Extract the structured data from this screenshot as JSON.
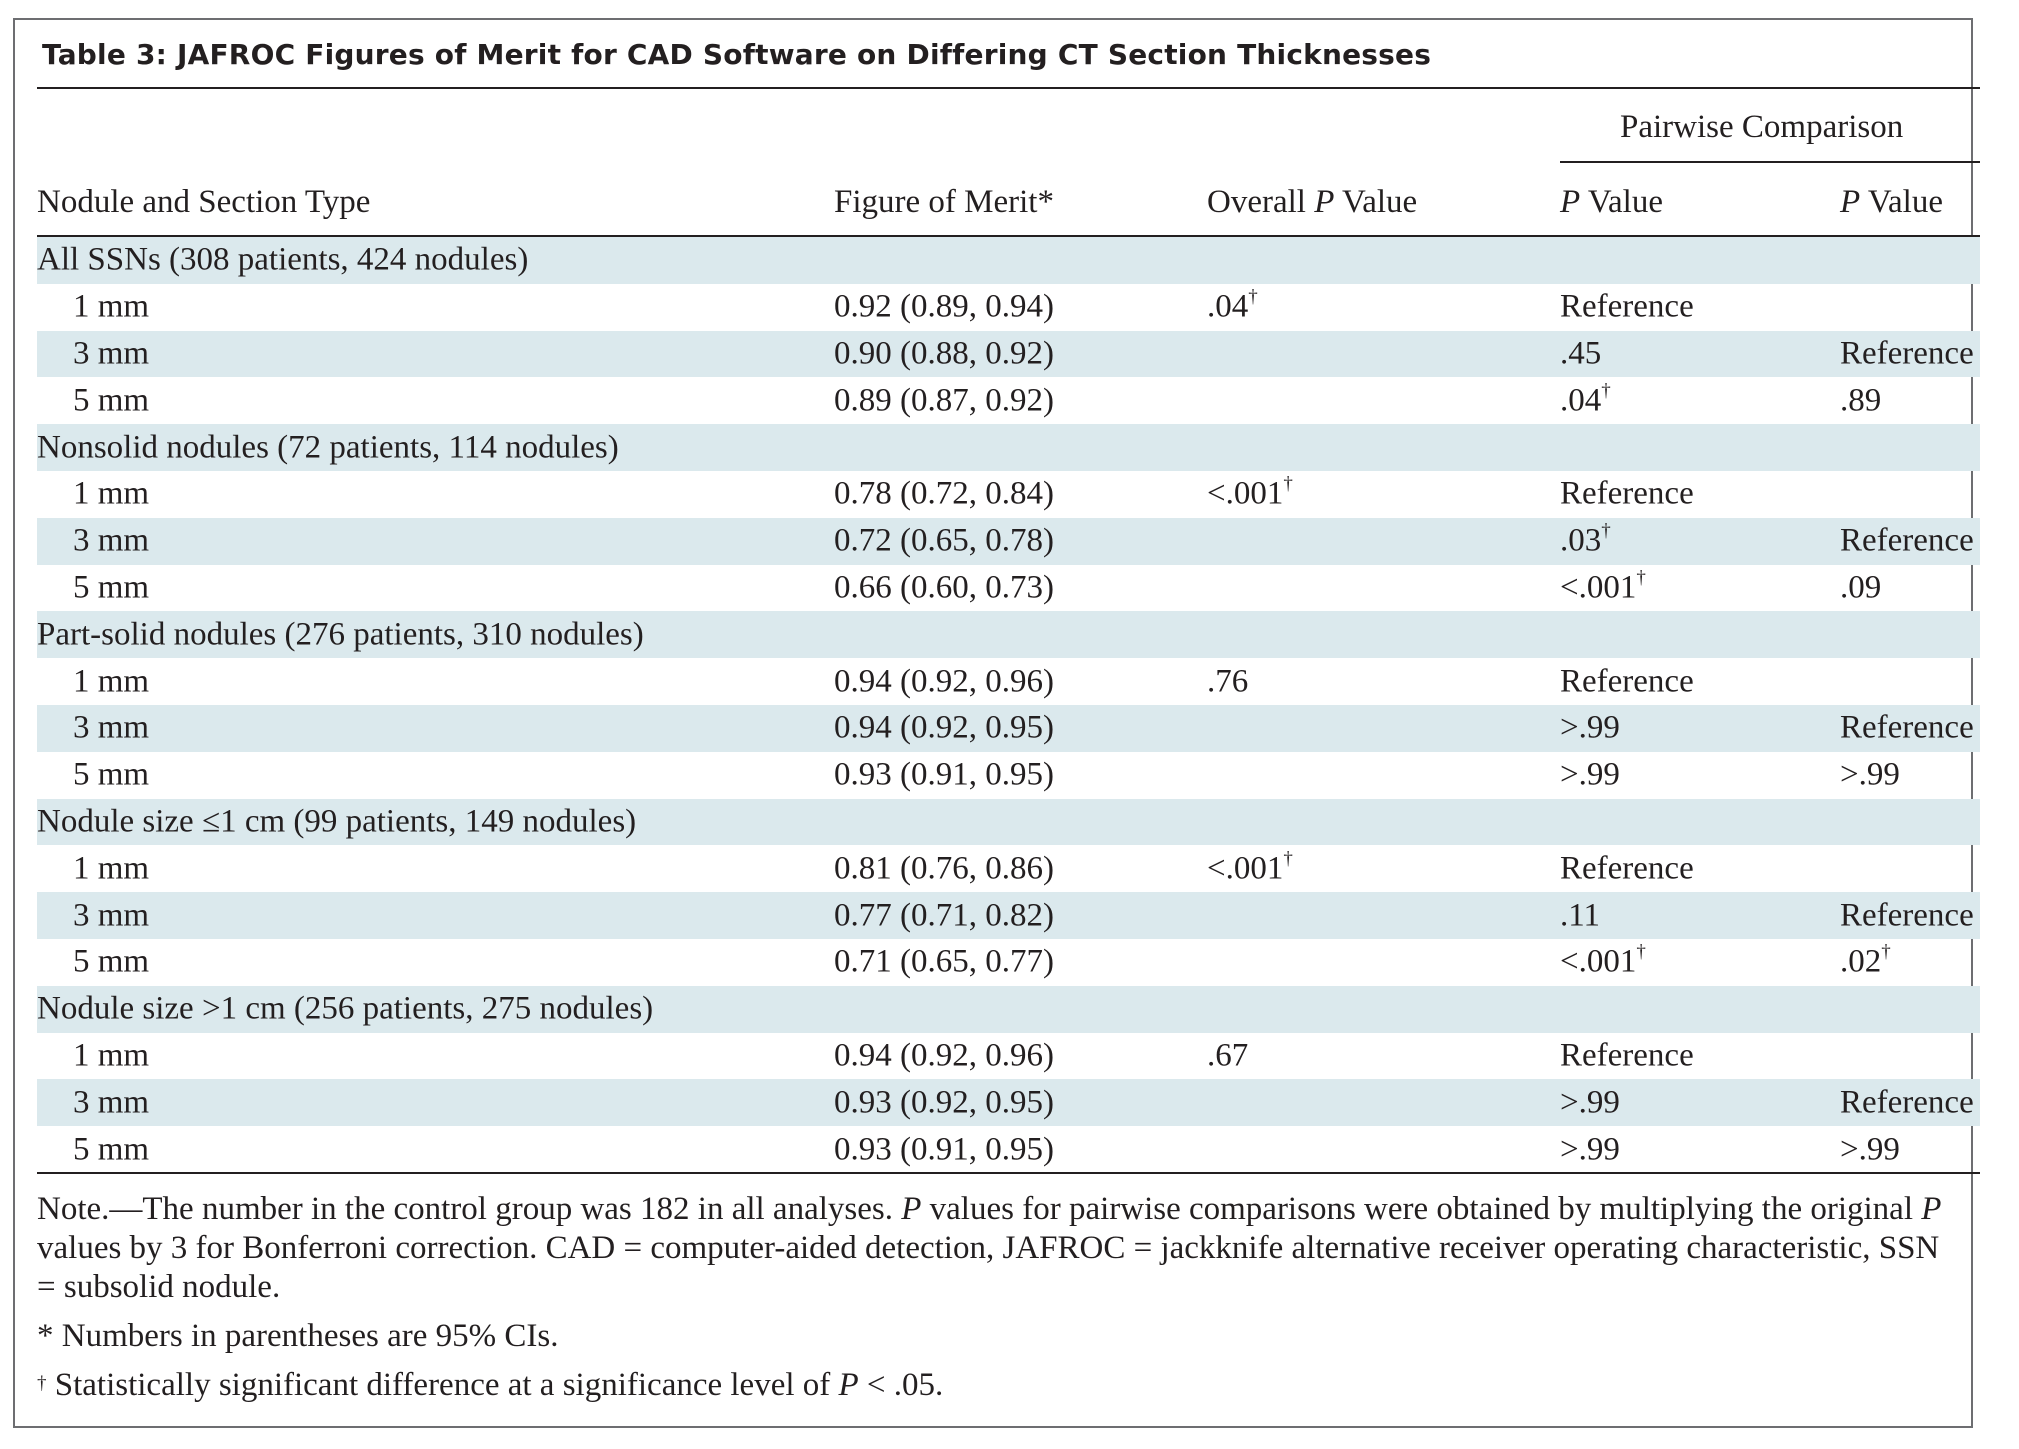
{
  "table": {
    "title": "Table 3: JAFROC Figures of Merit for CAD Software on Differing CT Section Thicknesses",
    "pairwise_header": "Pairwise Comparison",
    "columns": {
      "label": "Nodule and Section Type",
      "fom": "Figure of Merit",
      "fom_mark": "*",
      "overall_prefix": "Overall ",
      "p_italic": "P",
      "value_word": " Value"
    },
    "rows": [
      {
        "type": "group",
        "label": "All SSNs (308 patients, 424 nodules)"
      },
      {
        "type": "data",
        "label": "1 mm",
        "fom": "0.92 (0.89, 0.94)",
        "overall": ".04",
        "overall_mark": "†",
        "p1": "Reference",
        "p1_mark": "",
        "p2": "",
        "p2_mark": ""
      },
      {
        "type": "data",
        "label": "3 mm",
        "fom": "0.90 (0.88, 0.92)",
        "overall": "",
        "overall_mark": "",
        "p1": ".45",
        "p1_mark": "",
        "p2": "Reference",
        "p2_mark": ""
      },
      {
        "type": "data",
        "label": "5 mm",
        "fom": "0.89 (0.87, 0.92)",
        "overall": "",
        "overall_mark": "",
        "p1": ".04",
        "p1_mark": "†",
        "p2": ".89",
        "p2_mark": ""
      },
      {
        "type": "group",
        "label": "Nonsolid nodules (72 patients, 114 nodules)"
      },
      {
        "type": "data",
        "label": "1 mm",
        "fom": "0.78 (0.72, 0.84)",
        "overall": "<.001",
        "overall_mark": "†",
        "p1": "Reference",
        "p1_mark": "",
        "p2": "",
        "p2_mark": ""
      },
      {
        "type": "data",
        "label": "3 mm",
        "fom": "0.72 (0.65, 0.78)",
        "overall": "",
        "overall_mark": "",
        "p1": ".03",
        "p1_mark": "†",
        "p2": "Reference",
        "p2_mark": ""
      },
      {
        "type": "data",
        "label": "5 mm",
        "fom": "0.66 (0.60, 0.73)",
        "overall": "",
        "overall_mark": "",
        "p1": "<.001",
        "p1_mark": "†",
        "p2": ".09",
        "p2_mark": ""
      },
      {
        "type": "group",
        "label": "Part-solid nodules (276 patients, 310 nodules)"
      },
      {
        "type": "data",
        "label": "1 mm",
        "fom": "0.94 (0.92, 0.96)",
        "overall": ".76",
        "overall_mark": "",
        "p1": "Reference",
        "p1_mark": "",
        "p2": "",
        "p2_mark": ""
      },
      {
        "type": "data",
        "label": "3 mm",
        "fom": "0.94 (0.92, 0.95)",
        "overall": "",
        "overall_mark": "",
        "p1": ">.99",
        "p1_mark": "",
        "p2": "Reference",
        "p2_mark": ""
      },
      {
        "type": "data",
        "label": "5 mm",
        "fom": "0.93 (0.91, 0.95)",
        "overall": "",
        "overall_mark": "",
        "p1": ">.99",
        "p1_mark": "",
        "p2": ">.99",
        "p2_mark": ""
      },
      {
        "type": "group",
        "label": "Nodule size ≤1 cm (99 patients, 149 nodules)"
      },
      {
        "type": "data",
        "label": "1 mm",
        "fom": "0.81 (0.76, 0.86)",
        "overall": "<.001",
        "overall_mark": "†",
        "p1": "Reference",
        "p1_mark": "",
        "p2": "",
        "p2_mark": ""
      },
      {
        "type": "data",
        "label": "3 mm",
        "fom": "0.77 (0.71, 0.82)",
        "overall": "",
        "overall_mark": "",
        "p1": ".11",
        "p1_mark": "",
        "p2": "Reference",
        "p2_mark": ""
      },
      {
        "type": "data",
        "label": "5 mm",
        "fom": "0.71 (0.65, 0.77)",
        "overall": "",
        "overall_mark": "",
        "p1": "<.001",
        "p1_mark": "†",
        "p2": ".02",
        "p2_mark": "†"
      },
      {
        "type": "group",
        "label": "Nodule size >1 cm (256 patients, 275 nodules)"
      },
      {
        "type": "data",
        "label": "1 mm",
        "fom": "0.94 (0.92, 0.96)",
        "overall": ".67",
        "overall_mark": "",
        "p1": "Reference",
        "p1_mark": "",
        "p2": "",
        "p2_mark": ""
      },
      {
        "type": "data",
        "label": "3 mm",
        "fom": "0.93 (0.92, 0.95)",
        "overall": "",
        "overall_mark": "",
        "p1": ">.99",
        "p1_mark": "",
        "p2": "Reference",
        "p2_mark": ""
      },
      {
        "type": "data",
        "label": "5 mm",
        "fom": "0.93 (0.91, 0.95)",
        "overall": "",
        "overall_mark": "",
        "p1": ">.99",
        "p1_mark": "",
        "p2": ">.99",
        "p2_mark": ""
      }
    ]
  },
  "notes": {
    "note_a": "Note.—The number in the control group was 182 in all analyses. ",
    "note_p": "P",
    "note_b": " values for pairwise comparisons were obtained by multiplying the original ",
    "note_c": " values by 3 for Bonferroni correction. CAD = computer-aided detection, JAFROC = jackknife alternative receiver operating characteristic, SSN = subsolid nodule.",
    "footnote_star_mark": "*",
    "footnote_star": " Numbers in parentheses are 95% CIs.",
    "footnote_dagger_mark": "†",
    "footnote_dagger_a": " Statistically significant difference at a significance level of ",
    "footnote_dagger_b": " < .05."
  }
}
